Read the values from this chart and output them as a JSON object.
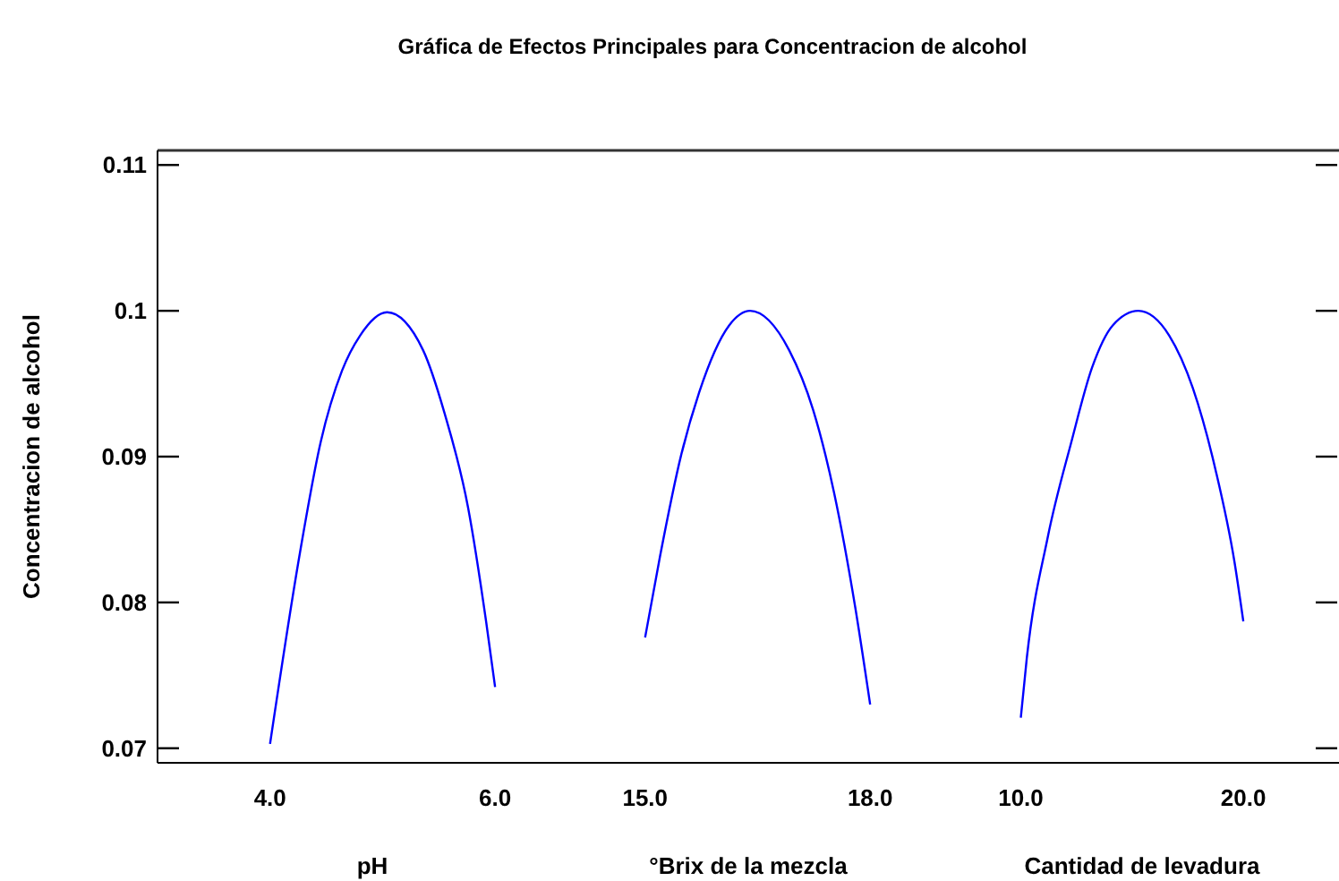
{
  "chart_data": [
    {
      "type": "line",
      "title": "Gráfica de Efectos Principales para Concentracion de alcohol",
      "ylabel": "Concentracion de alcohol",
      "xlabel": "pH",
      "xlim": [
        3.0,
        6.5
      ],
      "xticks": [
        {
          "value": 4,
          "label": "4.0"
        },
        {
          "value": 6,
          "label": "6.0"
        }
      ],
      "ylim": [
        0.069,
        0.111
      ],
      "yticks": [
        0.07,
        0.08,
        0.09,
        0.1,
        0.11
      ],
      "grid": false,
      "series": [
        {
          "color": "#0000ff",
          "x": [
            4.0,
            4.27,
            4.45,
            4.64,
            4.8,
            5.04,
            5.36,
            5.55,
            5.76,
            5.92,
            6.0
          ],
          "values": [
            0.0703,
            0.0836,
            0.091,
            0.0959,
            0.0983,
            0.0999,
            0.0973,
            0.093,
            0.0865,
            0.0787,
            0.0742
          ]
        }
      ]
    },
    {
      "type": "line",
      "xlabel": "°Brix de la mezcla",
      "xlim": [
        13.75,
        19.0
      ],
      "xticks": [
        {
          "value": 15,
          "label": "15.0"
        },
        {
          "value": 18,
          "label": "18.0"
        }
      ],
      "ylim": [
        0.069,
        0.111
      ],
      "tick_labels": "x",
      "grid": false,
      "series": [
        {
          "color": "#0000ff",
          "x": [
            15.0,
            15.2,
            15.48,
            15.72,
            16.12,
            16.4,
            16.92,
            17.24,
            17.52,
            17.8,
            18.0
          ],
          "values": [
            0.0776,
            0.0832,
            0.0901,
            0.0944,
            0.099,
            0.1,
            0.0973,
            0.0932,
            0.0875,
            0.0797,
            0.073
          ]
        }
      ]
    },
    {
      "type": "line",
      "xlabel": "Cantidad de levadura",
      "xlim": [
        6.6,
        24.3
      ],
      "xticks": [
        {
          "value": 10,
          "label": "10.0"
        },
        {
          "value": 20,
          "label": "20.0"
        }
      ],
      "ylim": [
        0.069,
        0.111
      ],
      "yticks": [
        {
          "value": 0.07,
          "label": null
        },
        {
          "value": 0.08,
          "label": null
        },
        {
          "value": 0.09,
          "label": null
        },
        {
          "value": 0.1,
          "label": null
        },
        {
          "value": 0.11,
          "label": null
        }
      ],
      "tick_labels": "x",
      "grid": false,
      "series": [
        {
          "color": "#0000ff",
          "x": [
            10.0,
            10.27,
            11.2,
            12.27,
            13.2,
            14.13,
            15.28,
            16.67,
            17.73,
            18.75,
            19.6,
            20.0
          ],
          "values": [
            0.0721,
            0.0762,
            0.0844,
            0.091,
            0.0961,
            0.099,
            0.1,
            0.0983,
            0.0947,
            0.0891,
            0.0828,
            0.0787
          ]
        }
      ]
    }
  ]
}
